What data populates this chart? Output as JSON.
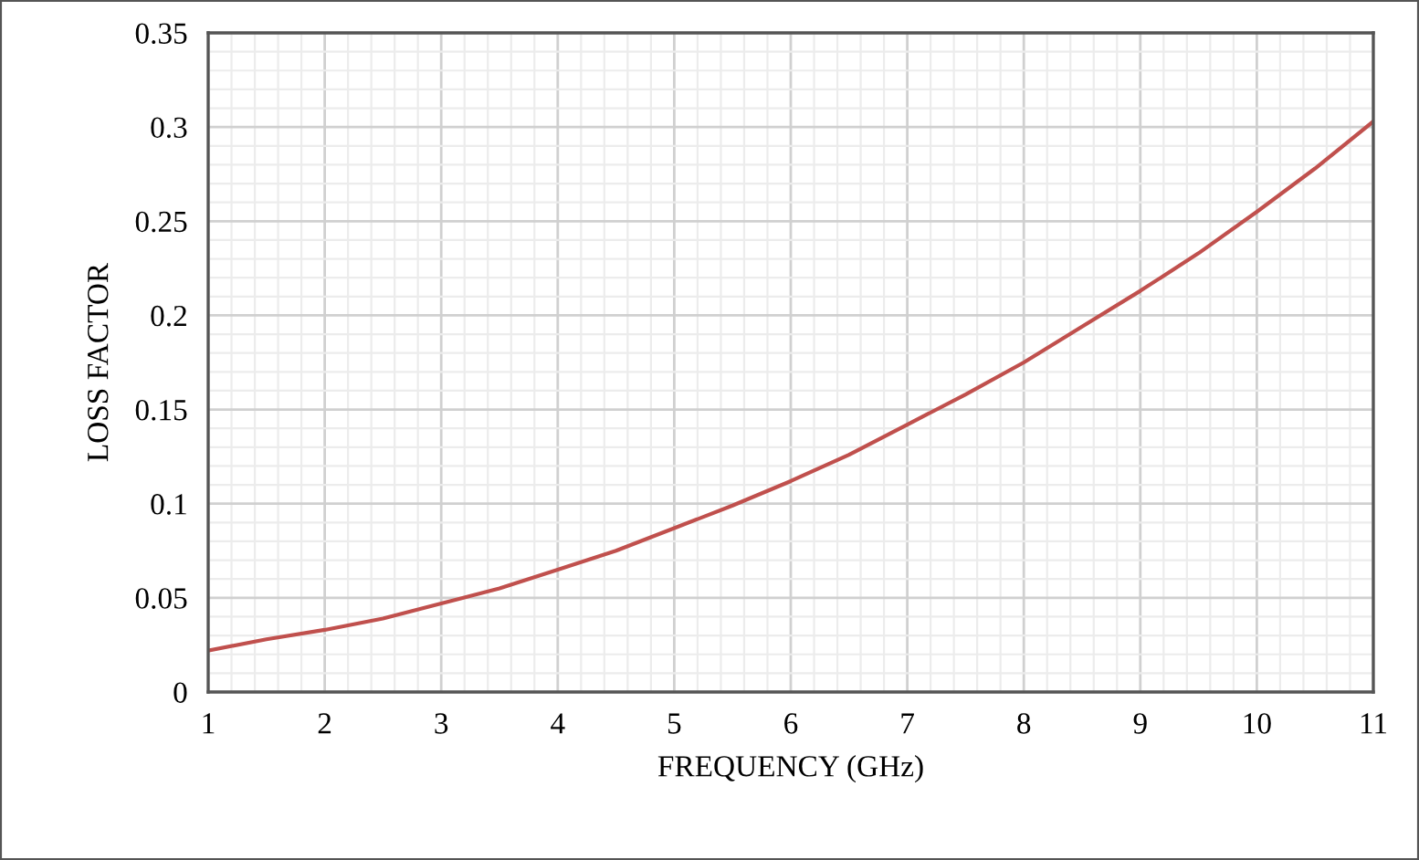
{
  "chart_data": {
    "type": "line",
    "xlabel": "FREQUENCY (GHz)",
    "ylabel": "LOSS FACTOR",
    "x": [
      1,
      1.5,
      2,
      2.5,
      3,
      3.5,
      4,
      4.5,
      5,
      5.5,
      6,
      6.5,
      7,
      7.5,
      8,
      8.5,
      9,
      9.5,
      10,
      10.5,
      11
    ],
    "series": [
      {
        "color": "#c0504d",
        "values": [
          0.022,
          0.028,
          0.033,
          0.039,
          0.047,
          0.055,
          0.065,
          0.075,
          0.087,
          0.099,
          0.112,
          0.126,
          0.142,
          0.158,
          0.175,
          0.194,
          0.213,
          0.233,
          0.255,
          0.278,
          0.303
        ]
      }
    ],
    "xlim": [
      1,
      11
    ],
    "xticks": [
      1,
      2,
      3,
      4,
      5,
      6,
      7,
      8,
      9,
      10,
      11
    ],
    "ylim": [
      0,
      0.35
    ],
    "yticks": [
      0,
      0.05,
      0.1,
      0.15,
      0.2,
      0.25,
      0.3,
      0.35
    ],
    "grid": true,
    "marker": "none",
    "line_style": "solid"
  }
}
